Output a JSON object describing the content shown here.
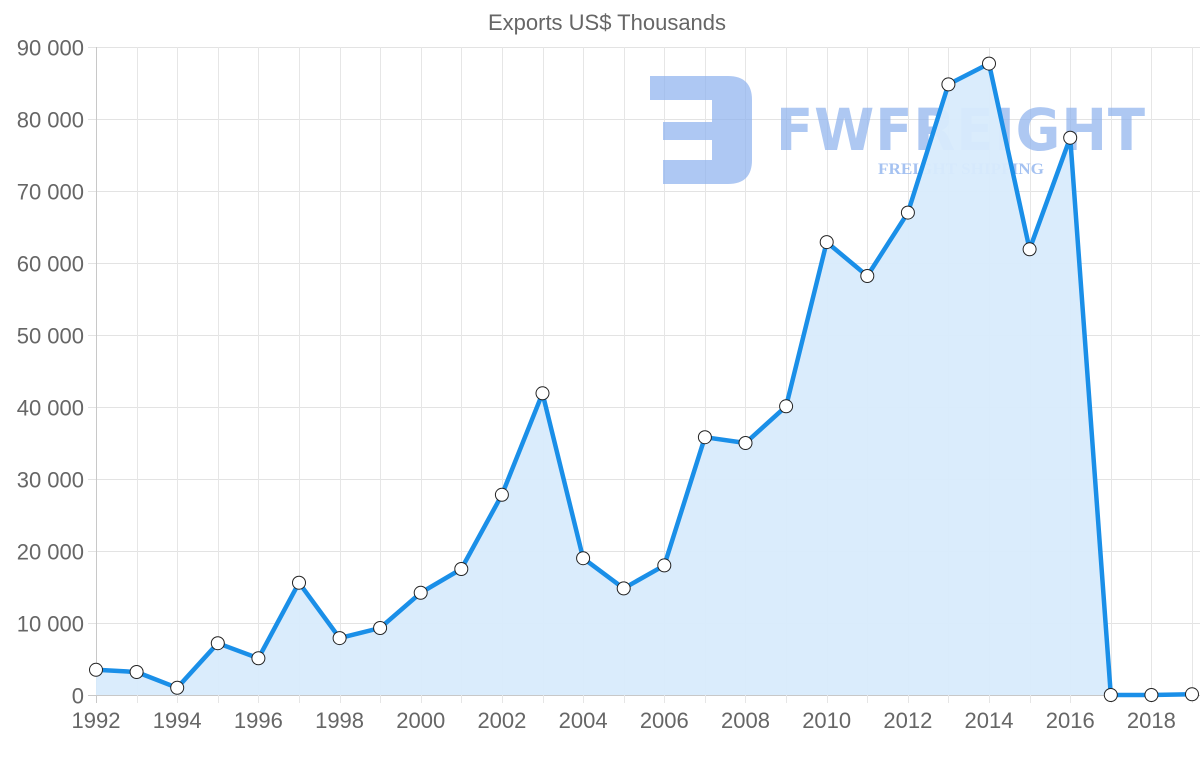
{
  "chart_data": {
    "type": "line",
    "title": "Exports US$ Thousands",
    "xlabel": "",
    "ylabel": "",
    "x": [
      1992,
      1993,
      1994,
      1995,
      1996,
      1997,
      1998,
      1999,
      2000,
      2001,
      2002,
      2003,
      2004,
      2005,
      2006,
      2007,
      2008,
      2009,
      2010,
      2011,
      2012,
      2013,
      2014,
      2015,
      2016,
      2017,
      2018,
      2019
    ],
    "series": [
      {
        "name": "Exports US$ Thousands",
        "values": [
          3500,
          3200,
          1000,
          7200,
          5100,
          15600,
          7900,
          9300,
          14200,
          17500,
          27800,
          41900,
          19000,
          14800,
          18000,
          35800,
          35000,
          40100,
          62900,
          58200,
          67000,
          84800,
          87700,
          61900,
          77400,
          0,
          0,
          100
        ],
        "color": "#1a8fe8",
        "fill": "#d8ebfc"
      }
    ],
    "ylim": [
      0,
      90000
    ],
    "yticks": [
      0,
      10000,
      20000,
      30000,
      40000,
      50000,
      60000,
      70000,
      80000,
      90000
    ],
    "ytick_labels": [
      "0",
      "10 000",
      "20 000",
      "30 000",
      "40 000",
      "50 000",
      "60 000",
      "70 000",
      "80 000",
      "90 000"
    ],
    "xticks": [
      1992,
      1994,
      1996,
      1998,
      2000,
      2002,
      2004,
      2006,
      2008,
      2010,
      2012,
      2014,
      2016,
      2018
    ],
    "xtick_labels": [
      "1992",
      "1994",
      "1996",
      "1998",
      "2000",
      "2002",
      "2004",
      "2006",
      "2008",
      "2010",
      "2012",
      "2014",
      "2016",
      "2018"
    ],
    "grid": true,
    "legend": "none",
    "filled_area": true,
    "markers": "circle-white"
  },
  "watermark": {
    "brand": "FWFREIGHT",
    "tagline": "FREIGHT SHIPPING",
    "color": "#8fb3ee"
  }
}
